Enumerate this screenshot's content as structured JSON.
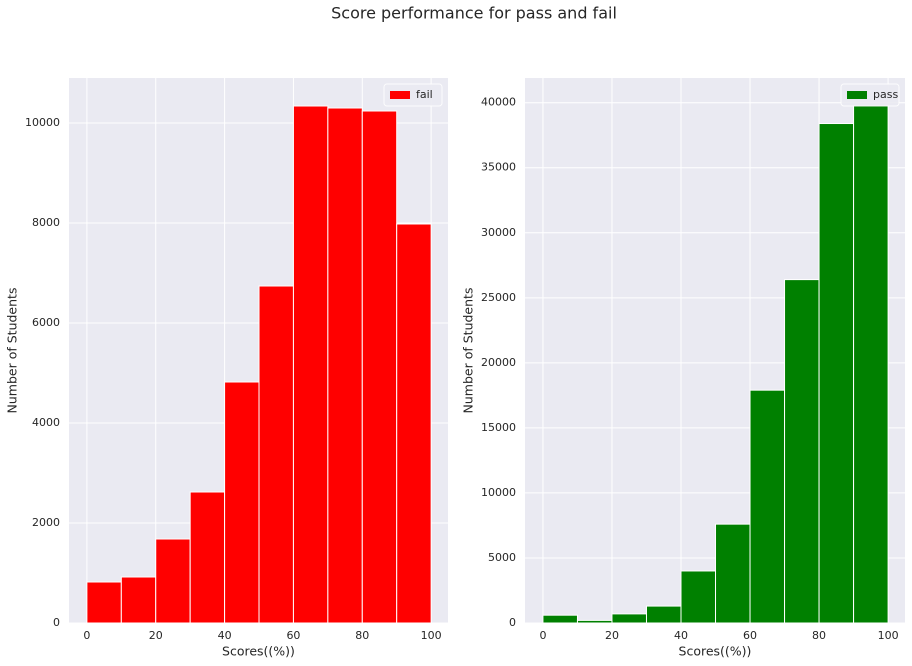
{
  "title": "Score performance for pass and fail",
  "chart_data": [
    {
      "type": "histogram",
      "xlabel": "Scores((%))",
      "ylabel": "Number of Students",
      "bins": [
        0,
        10,
        20,
        30,
        40,
        50,
        60,
        70,
        80,
        90,
        100
      ],
      "series": [
        {
          "name": "fail",
          "color": "#ff0000",
          "values": [
            820,
            920,
            1680,
            2620,
            4820,
            6740,
            10340,
            10300,
            10240,
            7980
          ]
        }
      ],
      "xlim": [
        -5.2,
        104.9
      ],
      "xticks": [
        0,
        20,
        40,
        60,
        80,
        100
      ],
      "ylim": [
        0,
        10900
      ],
      "yticks": [
        0,
        2000,
        4000,
        6000,
        8000,
        10000
      ],
      "grid": true,
      "legend": "upper right"
    },
    {
      "type": "histogram",
      "xlabel": "Scores((%))",
      "ylabel": "Number of Students",
      "bins": [
        0,
        10,
        20,
        30,
        40,
        50,
        60,
        70,
        80,
        90,
        100
      ],
      "series": [
        {
          "name": "pass",
          "color": "#008000",
          "values": [
            600,
            200,
            700,
            1300,
            4000,
            7600,
            17900,
            26400,
            38400,
            39800
          ]
        }
      ],
      "xlim": [
        -5.2,
        104.9
      ],
      "xticks": [
        0,
        20,
        40,
        60,
        80,
        100
      ],
      "ylim": [
        0,
        41900
      ],
      "yticks": [
        0,
        5000,
        10000,
        15000,
        20000,
        25000,
        30000,
        35000,
        40000
      ],
      "grid": true,
      "legend": "upper right"
    }
  ]
}
